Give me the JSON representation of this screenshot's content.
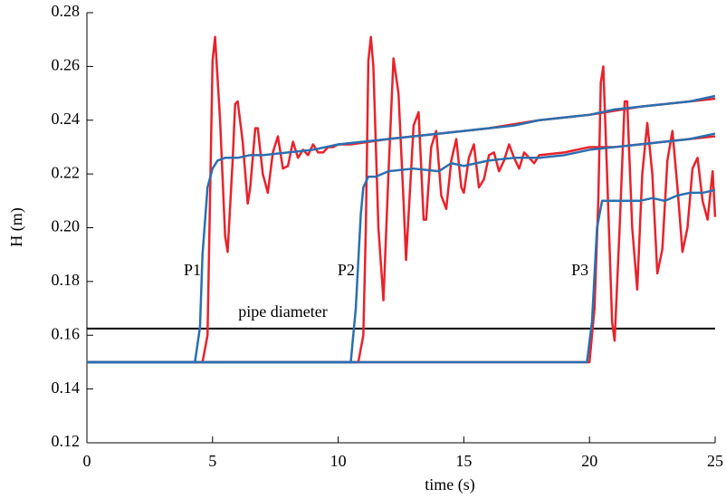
{
  "chart_data": {
    "type": "line",
    "x_label": "time (s)",
    "y_label": "H (m)",
    "xlim": [
      0,
      25
    ],
    "xticks": [
      0,
      5,
      10,
      15,
      20,
      25
    ],
    "ylim": [
      0.12,
      0.28
    ],
    "yticks": [
      0.12,
      0.14,
      0.16,
      0.18,
      {
        "value": 0.2,
        "label": "0.20"
      },
      0.22,
      0.24,
      0.26,
      0.28
    ],
    "grid": false,
    "hlines": [
      {
        "value": 0.1625,
        "color": "#000000",
        "label": "pipe diameter"
      }
    ],
    "annotations": [
      "P1",
      "P2",
      "P3"
    ],
    "series": [
      {
        "color": "#e8222b",
        "x": [
          0,
          4.6,
          4.8,
          5.0,
          5.1,
          5.3,
          5.5,
          5.6,
          5.8,
          5.9,
          6.0,
          6.2,
          6.4,
          6.5,
          6.7,
          6.8,
          7.0,
          7.2,
          7.4,
          7.6,
          7.8,
          8.0,
          8.2,
          8.4,
          8.6,
          8.8,
          9.0,
          9.2,
          9.4,
          9.6,
          9.8,
          10.0,
          10.5,
          12,
          14,
          16,
          18,
          20,
          22,
          24,
          25
        ],
        "values": [
          0.15,
          0.15,
          0.16,
          0.262,
          0.271,
          0.24,
          0.197,
          0.191,
          0.225,
          0.246,
          0.247,
          0.232,
          0.209,
          0.215,
          0.237,
          0.237,
          0.22,
          0.213,
          0.228,
          0.234,
          0.222,
          0.223,
          0.232,
          0.226,
          0.229,
          0.227,
          0.231,
          0.228,
          0.228,
          0.23,
          0.23,
          0.231,
          0.231,
          0.233,
          0.235,
          0.237,
          0.24,
          0.242,
          0.245,
          0.247,
          0.248
        ]
      },
      {
        "color": "#e8222b",
        "x": [
          0,
          10.8,
          11.0,
          11.1,
          11.2,
          11.3,
          11.4,
          11.6,
          11.8,
          12.0,
          12.2,
          12.4,
          12.6,
          12.7,
          12.9,
          13.0,
          13.2,
          13.4,
          13.5,
          13.7,
          13.9,
          14.1,
          14.3,
          14.5,
          14.7,
          14.9,
          15.0,
          15.2,
          15.4,
          15.6,
          15.8,
          16.0,
          16.2,
          16.4,
          16.6,
          16.8,
          17.0,
          17.2,
          17.4,
          17.6,
          17.8,
          18,
          19,
          20,
          21,
          22,
          23,
          24,
          25
        ],
        "values": [
          0.15,
          0.15,
          0.16,
          0.2,
          0.262,
          0.271,
          0.26,
          0.2,
          0.173,
          0.22,
          0.263,
          0.25,
          0.21,
          0.188,
          0.221,
          0.238,
          0.243,
          0.203,
          0.203,
          0.23,
          0.236,
          0.212,
          0.207,
          0.225,
          0.233,
          0.215,
          0.213,
          0.226,
          0.231,
          0.215,
          0.218,
          0.227,
          0.228,
          0.221,
          0.225,
          0.231,
          0.226,
          0.222,
          0.228,
          0.226,
          0.224,
          0.227,
          0.228,
          0.23,
          0.23,
          0.231,
          0.232,
          0.233,
          0.234
        ]
      },
      {
        "color": "#e8222b",
        "x": [
          0,
          20.0,
          20.2,
          20.35,
          20.45,
          20.55,
          20.7,
          20.9,
          21.0,
          21.2,
          21.4,
          21.5,
          21.7,
          21.9,
          22.1,
          22.3,
          22.5,
          22.7,
          22.9,
          23.1,
          23.3,
          23.5,
          23.7,
          23.9,
          24.1,
          24.3,
          24.5,
          24.7,
          24.9,
          25.0
        ],
        "values": [
          0.15,
          0.15,
          0.17,
          0.21,
          0.254,
          0.26,
          0.22,
          0.165,
          0.158,
          0.2,
          0.247,
          0.247,
          0.2,
          0.177,
          0.22,
          0.239,
          0.22,
          0.183,
          0.192,
          0.225,
          0.236,
          0.215,
          0.191,
          0.2,
          0.222,
          0.226,
          0.21,
          0.203,
          0.221,
          0.204
        ]
      },
      {
        "color": "#2a6fb0",
        "x": [
          0,
          4.3,
          4.5,
          4.6,
          4.8,
          5.0,
          5.2,
          5.5,
          6.0,
          6.5,
          7,
          8,
          9,
          10,
          11,
          12,
          13,
          14,
          15,
          16,
          17,
          18,
          19,
          20,
          21,
          22,
          23,
          24,
          25
        ],
        "values": [
          0.15,
          0.15,
          0.163,
          0.19,
          0.215,
          0.222,
          0.225,
          0.226,
          0.226,
          0.227,
          0.227,
          0.228,
          0.229,
          0.231,
          0.232,
          0.233,
          0.234,
          0.235,
          0.236,
          0.237,
          0.238,
          0.24,
          0.241,
          0.242,
          0.244,
          0.245,
          0.246,
          0.247,
          0.249
        ]
      },
      {
        "color": "#2a6fb0",
        "x": [
          0,
          10.5,
          10.7,
          10.9,
          11.0,
          11.2,
          11.5,
          12,
          13,
          14,
          14.5,
          15,
          16,
          17,
          18,
          19,
          20,
          21,
          22,
          23,
          24,
          25
        ],
        "values": [
          0.15,
          0.15,
          0.17,
          0.205,
          0.215,
          0.219,
          0.219,
          0.221,
          0.222,
          0.221,
          0.224,
          0.223,
          0.225,
          0.226,
          0.226,
          0.227,
          0.229,
          0.23,
          0.231,
          0.232,
          0.233,
          0.235
        ]
      },
      {
        "color": "#2a6fb0",
        "x": [
          0,
          19.9,
          20.1,
          20.3,
          20.5,
          21,
          21.5,
          22,
          22.5,
          23,
          23.5,
          24,
          24.5,
          25
        ],
        "values": [
          0.15,
          0.15,
          0.165,
          0.2,
          0.21,
          0.21,
          0.21,
          0.21,
          0.211,
          0.21,
          0.212,
          0.213,
          0.213,
          0.214
        ]
      }
    ]
  }
}
